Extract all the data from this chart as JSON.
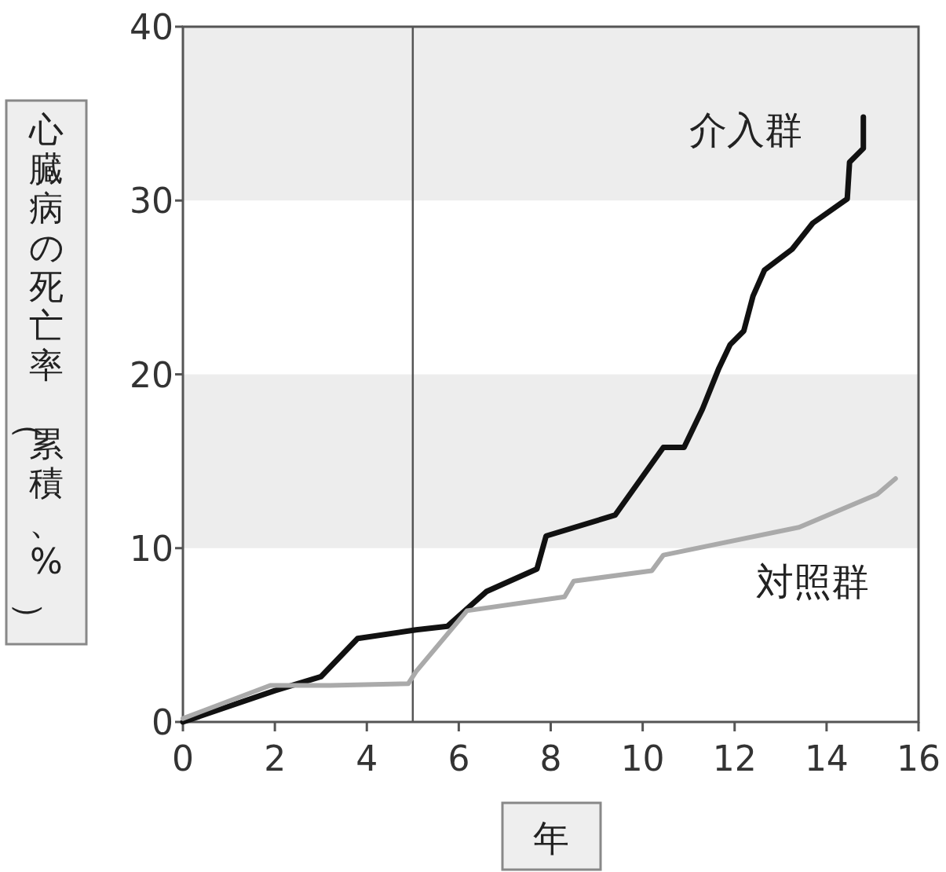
{
  "chart_data": {
    "type": "line",
    "xlabel": "年",
    "ylabel": "心臓病の死亡率（累積、%）",
    "xlim": [
      0,
      16
    ],
    "ylim": [
      0,
      40
    ],
    "xticks": [
      0,
      2,
      4,
      6,
      8,
      10,
      12,
      14,
      16
    ],
    "yticks": [
      0,
      10,
      20,
      30,
      40
    ],
    "grid": false,
    "marker": "none",
    "line_style": "solid",
    "bands": [
      {
        "axis": "y",
        "from": 10,
        "to": 20,
        "color": "#ededed"
      },
      {
        "axis": "y",
        "from": 30,
        "to": 40,
        "color": "#ededed"
      }
    ],
    "ref_lines": [
      {
        "axis": "x",
        "value": 5,
        "color": "#555555"
      }
    ],
    "series": [
      {
        "name": "介入群",
        "color": "#111111",
        "x": [
          0,
          2,
          3.0,
          3.8,
          5.07,
          5.75,
          6.6,
          7.7,
          7.9,
          9.4,
          10.45,
          10.9,
          11.3,
          11.65,
          11.9,
          12.2,
          12.4,
          12.65,
          13.25,
          13.7,
          14.45,
          14.5,
          14.8,
          14.8
        ],
        "values": [
          0,
          1.8,
          2.6,
          4.8,
          5.3,
          5.5,
          7.5,
          8.8,
          10.7,
          11.9,
          15.8,
          15.8,
          18.0,
          20.3,
          21.7,
          22.5,
          24.5,
          26.0,
          27.2,
          28.7,
          30.1,
          32.2,
          33.0,
          34.8
        ]
      },
      {
        "name": "対照群",
        "color": "#aaaaaa",
        "x": [
          0,
          1.9,
          3.2,
          4.9,
          5.07,
          6.18,
          8.3,
          8.5,
          10.2,
          10.45,
          13.4,
          15.1,
          15.5
        ],
        "values": [
          0.2,
          2.1,
          2.1,
          2.2,
          2.9,
          6.4,
          7.2,
          8.1,
          8.7,
          9.6,
          11.2,
          13.1,
          14.0
        ]
      }
    ]
  }
}
